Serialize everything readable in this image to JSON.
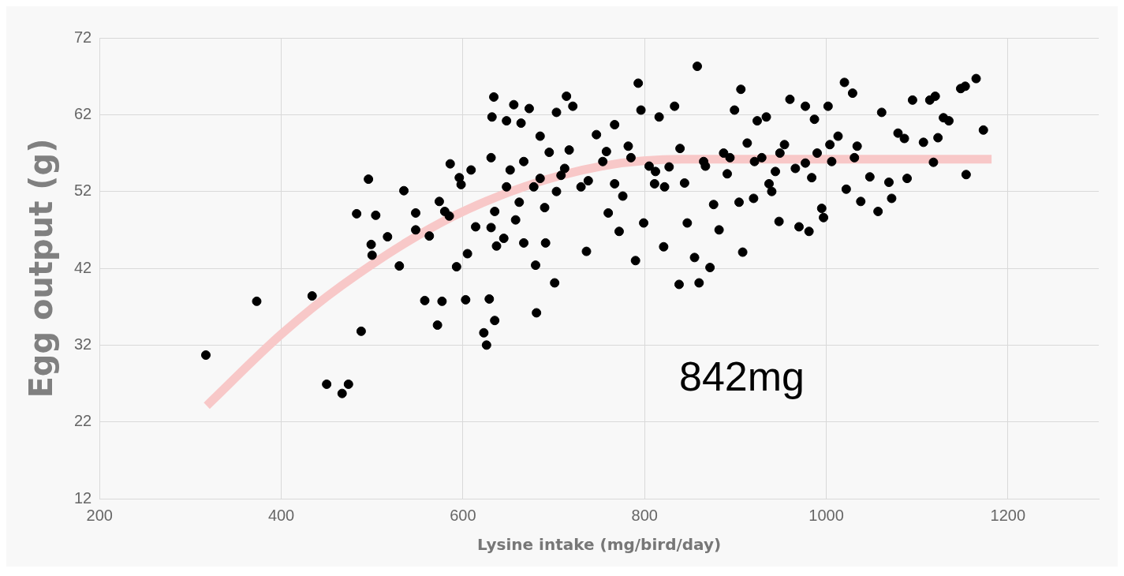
{
  "chart_data": {
    "type": "scatter",
    "xlabel": "Lysine intake (mg/bird/day)",
    "ylabel": "Egg output (g)",
    "annotations": [
      "842mg"
    ],
    "xlim": [
      200,
      1300
    ],
    "xticks": [
      200,
      400,
      600,
      800,
      1000,
      1200
    ],
    "ylim": [
      12,
      72
    ],
    "yticks": [
      12,
      22,
      32,
      42,
      52,
      62,
      72
    ],
    "grid": true,
    "series": [
      {
        "marker": "circle",
        "color": "#000000",
        "x": [
          317,
          373,
          434,
          450,
          467,
          474,
          488,
          483,
          496,
          499,
          504,
          500,
          517,
          530,
          535,
          548,
          548,
          558,
          572,
          577,
          574,
          580,
          585,
          563,
          586,
          593,
          596,
          598,
          603,
          605,
          609,
          614,
          623,
          626,
          629,
          631,
          634,
          632,
          631,
          635,
          637,
          635,
          645,
          648,
          652,
          656,
          658,
          662,
          664,
          667,
          673,
          678,
          680,
          681,
          685,
          690,
          691,
          695,
          701,
          703,
          708,
          714,
          717,
          721,
          730,
          736,
          747,
          754,
          760,
          767,
          772,
          776,
          782,
          790,
          793,
          796,
          799,
          805,
          811,
          816,
          821,
          827,
          833,
          838,
          844,
          847,
          855,
          858,
          860,
          865,
          872,
          876,
          882,
          887,
          891,
          899,
          904,
          906,
          908,
          913,
          920,
          924,
          929,
          934,
          937,
          944,
          948,
          954,
          960,
          966,
          970,
          977,
          981,
          984,
          987,
          990,
          995,
          997,
          1002,
          1006,
          1013,
          1020,
          1022,
          1029,
          1034,
          1038,
          1048,
          1057,
          1061,
          1069,
          1072,
          1079,
          1086,
          1089,
          1095,
          1107,
          1114,
          1120,
          1118,
          1123,
          1129,
          1135,
          1148,
          1153,
          1154,
          1165,
          1173,
          667,
          685,
          712,
          738,
          758,
          785,
          812,
          839,
          867,
          894,
          921,
          949,
          977,
          1004,
          1031,
          648,
          703,
          767,
          822,
          940
        ],
        "values": [
          30.7,
          37.7,
          38.4,
          26.9,
          25.7,
          26.9,
          33.8,
          49.1,
          53.6,
          45.1,
          48.9,
          43.7,
          46.1,
          42.3,
          52.1,
          49.2,
          47,
          37.8,
          34.6,
          37.7,
          50.7,
          49.4,
          48.8,
          46.2,
          55.6,
          42.2,
          53.8,
          52.9,
          37.9,
          43.9,
          54.8,
          47.4,
          33.6,
          32,
          38,
          47.3,
          64.3,
          61.7,
          56.4,
          49.4,
          44.9,
          35.2,
          45.9,
          61.2,
          54.8,
          63.3,
          48.3,
          50.6,
          60.9,
          45.3,
          62.8,
          52.6,
          42.4,
          36.2,
          59.2,
          49.9,
          45.3,
          57.1,
          40.1,
          62.3,
          54.1,
          64.4,
          57.4,
          63.1,
          52.6,
          44.2,
          59.4,
          55.9,
          49.2,
          60.7,
          46.8,
          51.4,
          57.9,
          43,
          66.1,
          62.6,
          47.9,
          55.3,
          53,
          61.7,
          44.8,
          55.2,
          63.1,
          39.9,
          53.1,
          47.9,
          43.4,
          68.3,
          40.1,
          55.9,
          42.1,
          50.3,
          47,
          57,
          54.3,
          62.6,
          50.6,
          65.3,
          44.1,
          58.3,
          51.1,
          61.2,
          56.4,
          61.7,
          53,
          54.6,
          48.1,
          58.1,
          64,
          55,
          47.4,
          63.1,
          46.8,
          53.8,
          61.4,
          57,
          49.8,
          48.6,
          63.1,
          55.9,
          59.2,
          66.2,
          52.3,
          64.8,
          57.9,
          50.7,
          53.9,
          49.4,
          62.3,
          53.2,
          51.1,
          59.6,
          58.9,
          53.7,
          63.9,
          58.4,
          63.9,
          64.4,
          55.8,
          59,
          61.6,
          61.2,
          65.4,
          65.7,
          54.2,
          66.7,
          60,
          55.9,
          53.7,
          55,
          53.4,
          57.2,
          56.4,
          54.6,
          57.6,
          55.3,
          56.4,
          55.9,
          57,
          55.7,
          58.1,
          56.4,
          52.6,
          52,
          53,
          52.6,
          52
        ]
      },
      {
        "type": "line",
        "marker": "none",
        "color": "#f8c8c8",
        "x": [
          318,
          400,
          466,
          575,
          667,
          758,
          842,
          1182
        ],
        "values": [
          24.1,
          33.4,
          39.7,
          47.9,
          52.6,
          55.4,
          56.2,
          56.2
        ]
      }
    ]
  }
}
